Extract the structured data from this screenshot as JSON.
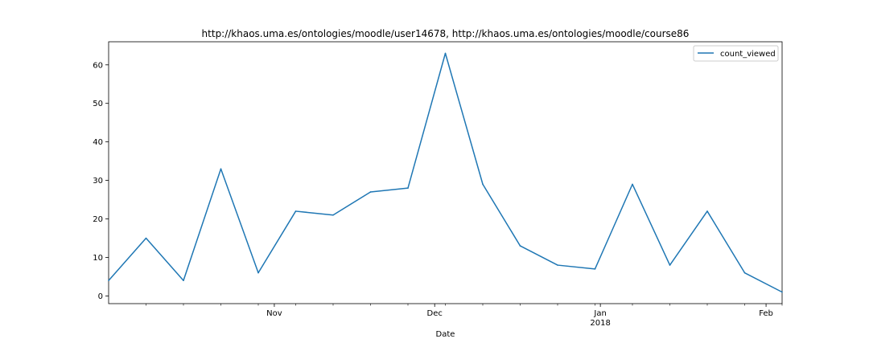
{
  "chart_data": {
    "type": "line",
    "title": "http://khaos.uma.es/ontologies/moodle/user14678, http://khaos.uma.es/ontologies/moodle/course86",
    "xlabel": "Date",
    "ylabel": "",
    "x": [
      "2017-10-01",
      "2017-10-08",
      "2017-10-15",
      "2017-10-22",
      "2017-10-29",
      "2017-11-05",
      "2017-11-12",
      "2017-11-19",
      "2017-11-26",
      "2017-12-03",
      "2017-12-10",
      "2017-12-17",
      "2017-12-24",
      "2017-12-31",
      "2018-01-07",
      "2018-01-14",
      "2018-01-21",
      "2018-01-28",
      "2018-02-04"
    ],
    "series": [
      {
        "name": "count_viewed",
        "color": "#1f77b4",
        "values": [
          4,
          15,
          4,
          33,
          6,
          22,
          21,
          27,
          28,
          63,
          29,
          13,
          8,
          7,
          29,
          8,
          22,
          6,
          1
        ]
      }
    ],
    "xlim": [
      "2017-10-01",
      "2018-02-04"
    ],
    "ylim": [
      -2.0,
      66.0
    ],
    "yticks": [
      0,
      10,
      20,
      30,
      40,
      50,
      60
    ],
    "xticks": [
      {
        "date": "2017-11-01",
        "label": "Nov",
        "sublabel": ""
      },
      {
        "date": "2017-12-01",
        "label": "Dec",
        "sublabel": ""
      },
      {
        "date": "2018-01-01",
        "label": "Jan",
        "sublabel": "2018"
      },
      {
        "date": "2018-02-01",
        "label": "Feb",
        "sublabel": ""
      }
    ],
    "minor_xticks": [
      "2017-10-08",
      "2017-10-15",
      "2017-10-22",
      "2017-10-29",
      "2017-11-05",
      "2017-11-12",
      "2017-11-19",
      "2017-11-26",
      "2017-12-03",
      "2017-12-10",
      "2017-12-17",
      "2017-12-24",
      "2017-12-31",
      "2018-01-07",
      "2018-01-14",
      "2018-01-21",
      "2018-01-28",
      "2018-02-04"
    ],
    "grid": false,
    "legend": "top-right"
  }
}
